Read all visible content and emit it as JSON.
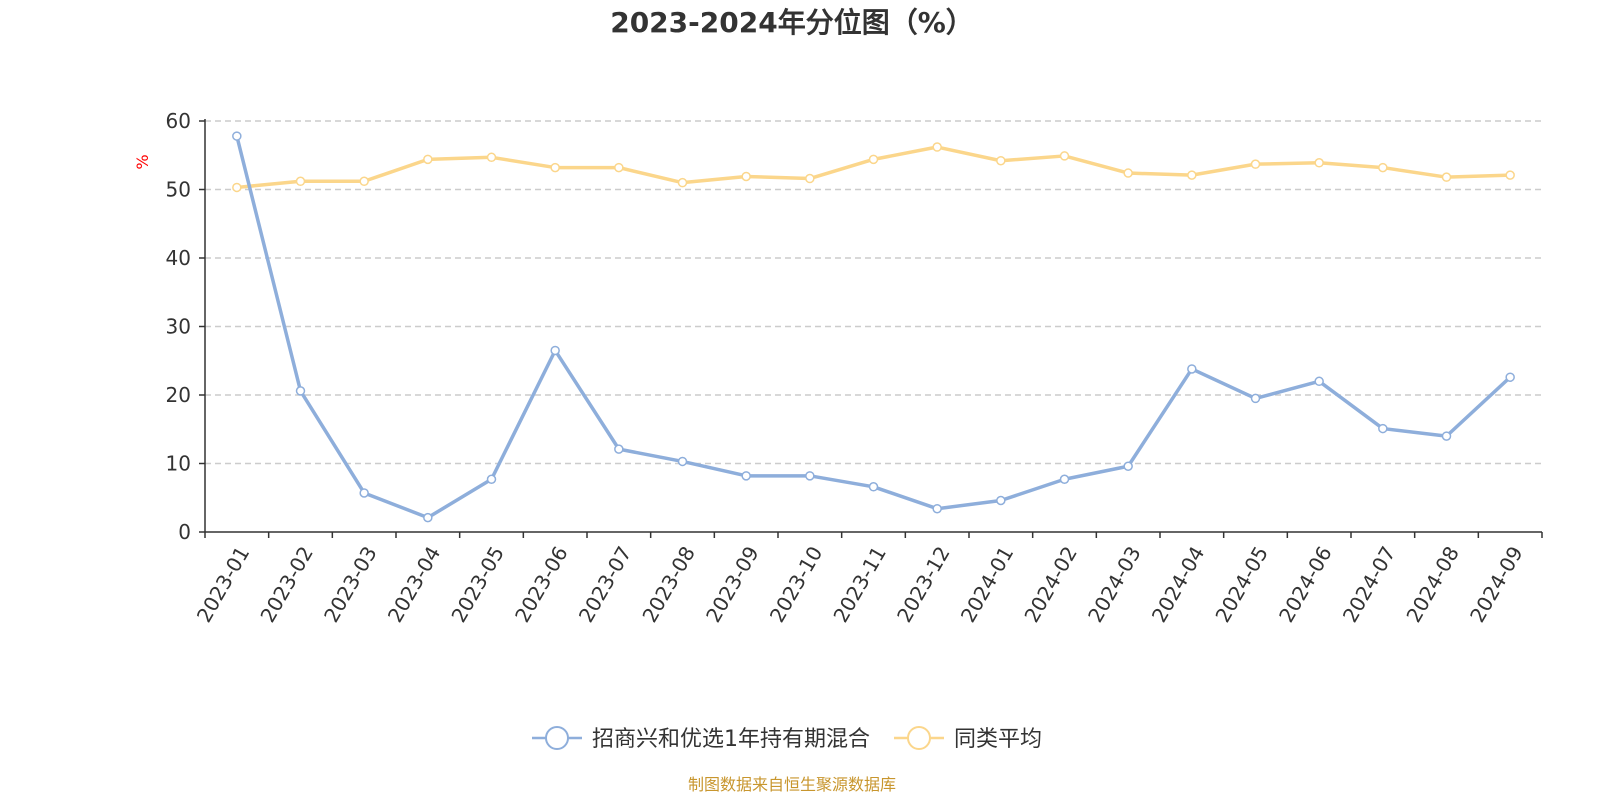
{
  "chart_data": {
    "type": "line",
    "title": "2023-2024年分位图（%）",
    "ylabel": "%",
    "xlabel": "",
    "ylim": [
      0,
      60
    ],
    "yticks": [
      0,
      10,
      20,
      30,
      40,
      50,
      60
    ],
    "grid": true,
    "legend_position": "bottom",
    "categories": [
      "2023-01",
      "2023-02",
      "2023-03",
      "2023-04",
      "2023-05",
      "2023-06",
      "2023-07",
      "2023-08",
      "2023-09",
      "2023-10",
      "2023-11",
      "2023-12",
      "2024-01",
      "2024-02",
      "2024-03",
      "2024-04",
      "2024-05",
      "2024-06",
      "2024-07",
      "2024-08",
      "2024-09"
    ],
    "series": [
      {
        "name": "招商兴和优选1年持有期混合",
        "color": "#8eaedb",
        "values": [
          57.8,
          20.6,
          5.7,
          2.1,
          7.7,
          26.5,
          12.1,
          10.3,
          8.2,
          8.2,
          6.6,
          3.4,
          4.6,
          7.7,
          9.6,
          23.8,
          19.5,
          22.0,
          15.1,
          14.0,
          22.6
        ]
      },
      {
        "name": "同类平均",
        "color": "#fbd68b",
        "values": [
          50.3,
          51.2,
          51.2,
          54.4,
          54.7,
          53.2,
          53.2,
          51.0,
          51.9,
          51.6,
          54.4,
          56.2,
          54.2,
          54.9,
          52.4,
          52.1,
          53.7,
          53.9,
          53.2,
          51.8,
          52.1
        ]
      }
    ],
    "source": "制图数据来自恒生聚源数据库",
    "source_color": "#c8962e",
    "ylabel_color": "#ff0000"
  }
}
